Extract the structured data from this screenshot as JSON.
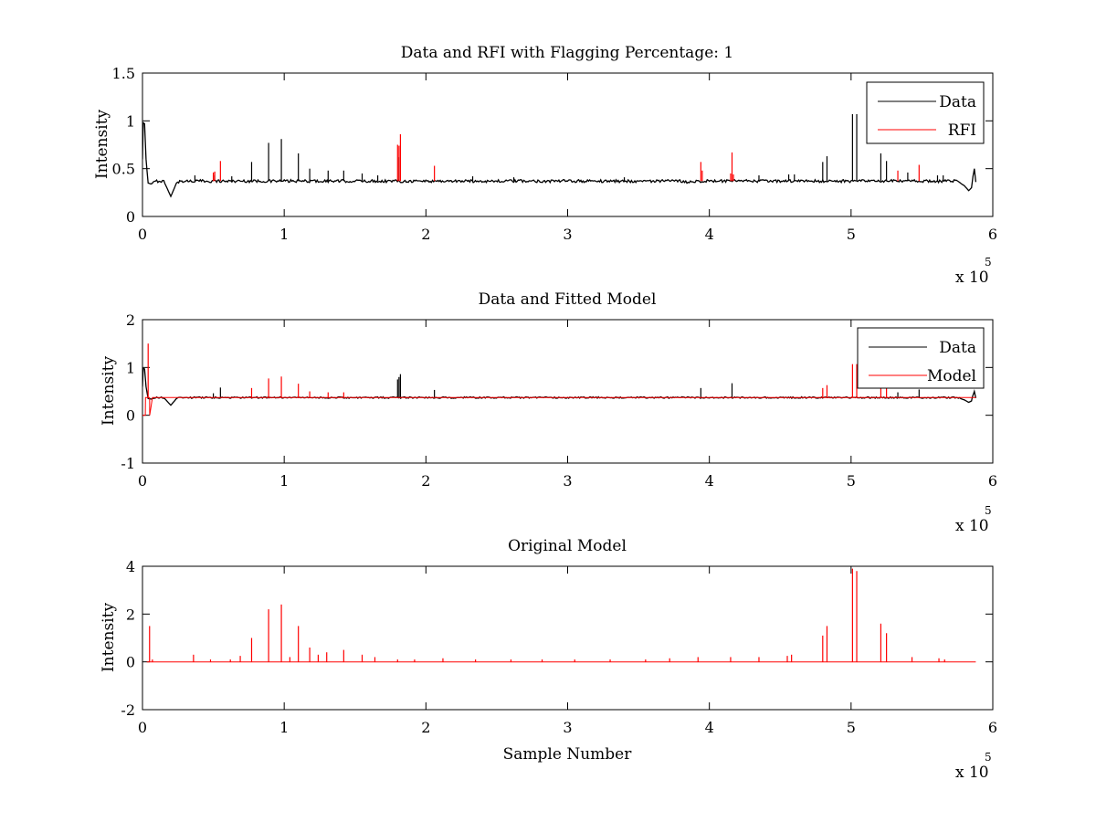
{
  "figure": {
    "background": "#ffffff"
  },
  "colors": {
    "data": "#000000",
    "rfi": "#ff0000",
    "model": "#ff0000",
    "axes": "#000000"
  },
  "chart_data": [
    {
      "type": "line",
      "title": "Data and RFI with Flagging Percentage: 1",
      "xlabel": "",
      "ylabel": "Intensity",
      "xlim": [
        0,
        6
      ],
      "ylim": [
        0,
        1.5
      ],
      "x_exponent": "x 10",
      "x_exponent_power": "5",
      "x_unit_scale": 100000,
      "xticks": [
        "0",
        "1",
        "2",
        "3",
        "4",
        "5",
        "6"
      ],
      "yticks": [
        "0",
        "0.5",
        "1",
        "1.5"
      ],
      "grid": false,
      "legend_position": "top-right",
      "legend": [
        "Data",
        "RFI"
      ],
      "series": [
        {
          "name": "Data",
          "color": "#000000",
          "baseline": 0.37,
          "x": [
            0,
            0.005,
            0.015,
            0.025,
            0.04,
            0.06,
            0.1,
            0.15,
            0.2,
            0.24,
            0.27,
            0.3,
            0.5,
            1.0,
            2.0,
            3.0,
            3.8,
            3.85,
            3.9,
            4.5,
            5.0,
            5.5,
            5.75,
            5.8,
            5.83,
            5.85,
            5.86,
            5.87,
            5.88
          ],
          "y": [
            0.6,
            0.98,
            0.97,
            0.6,
            0.35,
            0.34,
            0.37,
            0.37,
            0.21,
            0.35,
            0.37,
            0.37,
            0.37,
            0.37,
            0.37,
            0.37,
            0.37,
            0.36,
            0.37,
            0.37,
            0.37,
            0.37,
            0.37,
            0.32,
            0.27,
            0.3,
            0.42,
            0.5,
            0.36
          ],
          "spikes": [
            [
              0.37,
              0.43
            ],
            [
              0.5,
              0.43
            ],
            [
              0.63,
              0.42
            ],
            [
              0.77,
              0.57
            ],
            [
              0.89,
              0.77
            ],
            [
              0.98,
              0.81
            ],
            [
              1.1,
              0.66
            ],
            [
              1.18,
              0.5
            ],
            [
              1.31,
              0.48
            ],
            [
              1.42,
              0.48
            ],
            [
              1.55,
              0.45
            ],
            [
              1.66,
              0.43
            ],
            [
              1.81,
              0.62
            ],
            [
              2.33,
              0.42
            ],
            [
              2.62,
              0.41
            ],
            [
              3.4,
              0.41
            ],
            [
              4.35,
              0.43
            ],
            [
              4.56,
              0.44
            ],
            [
              4.6,
              0.44
            ],
            [
              4.8,
              0.57
            ],
            [
              4.83,
              0.63
            ],
            [
              5.01,
              1.07
            ],
            [
              5.04,
              1.07
            ],
            [
              5.21,
              0.66
            ],
            [
              5.25,
              0.58
            ],
            [
              5.4,
              0.46
            ],
            [
              5.61,
              0.43
            ],
            [
              5.65,
              0.43
            ]
          ]
        },
        {
          "name": "RFI",
          "color": "#ff0000",
          "spikes": [
            [
              0.5,
              0.46
            ],
            [
              0.51,
              0.47
            ],
            [
              0.55,
              0.58
            ],
            [
              1.8,
              0.75
            ],
            [
              1.81,
              0.74
            ],
            [
              1.82,
              0.86
            ],
            [
              2.06,
              0.53
            ],
            [
              3.94,
              0.57
            ],
            [
              3.95,
              0.48
            ],
            [
              4.15,
              0.45
            ],
            [
              4.16,
              0.67
            ],
            [
              4.17,
              0.44
            ],
            [
              5.33,
              0.48
            ],
            [
              5.48,
              0.54
            ]
          ]
        }
      ]
    },
    {
      "type": "line",
      "title": "Data and Fitted Model",
      "xlabel": "",
      "ylabel": "Intensity",
      "xlim": [
        0,
        6
      ],
      "ylim": [
        -1,
        2
      ],
      "x_exponent": "x 10",
      "x_exponent_power": "5",
      "x_unit_scale": 100000,
      "xticks": [
        "0",
        "1",
        "2",
        "3",
        "4",
        "5",
        "6"
      ],
      "yticks": [
        "-1",
        "0",
        "1",
        "2"
      ],
      "grid": false,
      "legend_position": "top-right",
      "legend": [
        "Data",
        "Model"
      ],
      "series": [
        {
          "name": "Data",
          "color": "#000000",
          "baseline": 0.37,
          "x": [
            0,
            0.005,
            0.015,
            0.025,
            0.04,
            0.06,
            0.1,
            0.15,
            0.2,
            0.24,
            0.27,
            0.3,
            1.0,
            2.0,
            3.0,
            4.0,
            5.0,
            5.75,
            5.8,
            5.83,
            5.85,
            5.86,
            5.87,
            5.88
          ],
          "y": [
            0.6,
            0.98,
            0.97,
            0.6,
            0.35,
            0.34,
            0.37,
            0.37,
            0.21,
            0.35,
            0.37,
            0.37,
            0.37,
            0.37,
            0.37,
            0.37,
            0.37,
            0.37,
            0.32,
            0.27,
            0.3,
            0.42,
            0.5,
            0.36
          ],
          "spikes": [
            [
              0.5,
              0.46
            ],
            [
              0.55,
              0.58
            ],
            [
              1.8,
              0.75
            ],
            [
              1.81,
              0.8
            ],
            [
              1.82,
              0.86
            ],
            [
              2.06,
              0.53
            ],
            [
              3.94,
              0.57
            ],
            [
              4.16,
              0.67
            ],
            [
              5.33,
              0.48
            ],
            [
              5.48,
              0.54
            ]
          ]
        },
        {
          "name": "Model",
          "color": "#ff0000",
          "baseline": 0.37,
          "x": [
            0,
            0.02,
            0.021,
            0.05,
            0.051,
            0.07,
            5.88
          ],
          "y": [
            0.0,
            0.0,
            0.37,
            0.37,
            0.0,
            0.37,
            0.37
          ],
          "spikes": [
            [
              0.04,
              1.5
            ],
            [
              0.77,
              0.57
            ],
            [
              0.89,
              0.77
            ],
            [
              0.98,
              0.81
            ],
            [
              1.1,
              0.66
            ],
            [
              1.18,
              0.5
            ],
            [
              1.31,
              0.48
            ],
            [
              1.42,
              0.48
            ],
            [
              4.8,
              0.57
            ],
            [
              4.83,
              0.63
            ],
            [
              5.01,
              1.07
            ],
            [
              5.04,
              1.07
            ],
            [
              5.21,
              0.66
            ],
            [
              5.25,
              0.58
            ]
          ]
        }
      ]
    },
    {
      "type": "line",
      "title": "Original Model",
      "xlabel": "Sample Number",
      "ylabel": "Intensity",
      "xlim": [
        0,
        6
      ],
      "ylim": [
        -2,
        4
      ],
      "x_exponent": "x 10",
      "x_exponent_power": "5",
      "x_unit_scale": 100000,
      "xticks": [
        "0",
        "1",
        "2",
        "3",
        "4",
        "5",
        "6"
      ],
      "yticks": [
        "-2",
        "0",
        "2",
        "4"
      ],
      "grid": false,
      "legend_position": "none",
      "legend": [],
      "series": [
        {
          "name": "",
          "color": "#ff0000",
          "baseline": 0.0,
          "x": [
            0.03,
            5.88
          ],
          "y": [
            0.0,
            0.0
          ],
          "spikes": [
            [
              0.05,
              1.5
            ],
            [
              0.07,
              0.1
            ],
            [
              0.36,
              0.3
            ],
            [
              0.48,
              0.1
            ],
            [
              0.62,
              0.1
            ],
            [
              0.69,
              0.25
            ],
            [
              0.77,
              1.0
            ],
            [
              0.89,
              2.2
            ],
            [
              0.98,
              2.4
            ],
            [
              1.04,
              0.2
            ],
            [
              1.1,
              1.5
            ],
            [
              1.18,
              0.6
            ],
            [
              1.24,
              0.3
            ],
            [
              1.3,
              0.4
            ],
            [
              1.42,
              0.5
            ],
            [
              1.55,
              0.3
            ],
            [
              1.64,
              0.2
            ],
            [
              1.8,
              0.1
            ],
            [
              1.92,
              0.1
            ],
            [
              2.12,
              0.15
            ],
            [
              2.35,
              0.1
            ],
            [
              2.6,
              0.1
            ],
            [
              2.82,
              0.1
            ],
            [
              3.05,
              0.1
            ],
            [
              3.3,
              0.1
            ],
            [
              3.55,
              0.1
            ],
            [
              3.72,
              0.15
            ],
            [
              3.92,
              0.2
            ],
            [
              4.15,
              0.2
            ],
            [
              4.35,
              0.2
            ],
            [
              4.55,
              0.25
            ],
            [
              4.58,
              0.3
            ],
            [
              4.8,
              1.1
            ],
            [
              4.83,
              1.5
            ],
            [
              5.01,
              3.9
            ],
            [
              5.04,
              3.8
            ],
            [
              5.21,
              1.6
            ],
            [
              5.25,
              1.2
            ],
            [
              5.43,
              0.2
            ],
            [
              5.62,
              0.15
            ],
            [
              5.66,
              0.1
            ]
          ]
        }
      ]
    }
  ]
}
